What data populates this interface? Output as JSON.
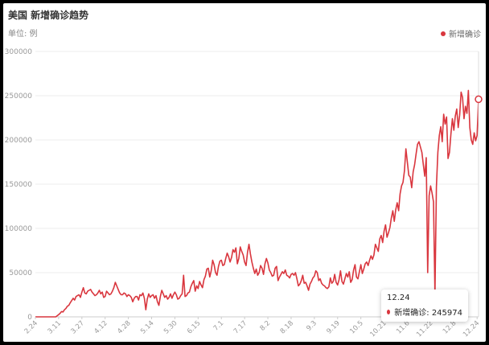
{
  "header": {
    "title": "美国 新增确诊趋势",
    "unit": "单位: 例"
  },
  "colors": {
    "line": "#d9363e",
    "grid": "#ececec",
    "axis_text": "#999999"
  },
  "chart_data": {
    "type": "line",
    "title": "美国 新增确诊趋势",
    "ylabel": "单位: 例",
    "ylim": [
      0,
      300000
    ],
    "yticks": [
      "0",
      "50000",
      "100000",
      "150000",
      "200000",
      "250000",
      "300000"
    ],
    "xticks": [
      "2.24",
      "3.11",
      "3.27",
      "4.12",
      "4.28",
      "5.14",
      "5.30",
      "6.15",
      "7.1",
      "7.17",
      "8.2",
      "8.18",
      "9.3",
      "9.19",
      "10.5",
      "10.21",
      "11.6",
      "11.22",
      "12.8",
      "12.24"
    ],
    "legend": "top-right",
    "grid": true,
    "series": [
      {
        "name": "新增确诊",
        "start_date": "2.24",
        "values": [
          0,
          0,
          0,
          0,
          0,
          0,
          0,
          0,
          0,
          0,
          0,
          0,
          0,
          0,
          0,
          1200,
          2500,
          4000,
          6000,
          5500,
          8000,
          9500,
          12000,
          13000,
          16000,
          18500,
          21000,
          19000,
          23000,
          24000,
          25000,
          22000,
          28000,
          33000,
          27000,
          26000,
          29000,
          30000,
          31000,
          28000,
          26000,
          24000,
          25000,
          27000,
          30000,
          26000,
          28000,
          22000,
          23000,
          29000,
          27000,
          25000,
          26000,
          29000,
          33000,
          39000,
          35000,
          31000,
          27000,
          25000,
          25000,
          27000,
          26000,
          23000,
          25000,
          24000,
          22000,
          17000,
          21000,
          23000,
          23000,
          19000,
          25000,
          24000,
          27000,
          21000,
          8000,
          20000,
          26000,
          22000,
          24000,
          25000,
          21000,
          24000,
          17000,
          13000,
          23000,
          30000,
          26000,
          22000,
          24000,
          20000,
          22000,
          26000,
          21000,
          25000,
          28000,
          25000,
          20000,
          21000,
          24000,
          26000,
          47000,
          23000,
          24000,
          27000,
          28000,
          34000,
          38000,
          41000,
          29000,
          35000,
          32000,
          40000,
          36000,
          33000,
          42000,
          46000,
          54000,
          55000,
          45000,
          52000,
          64000,
          59000,
          50000,
          47000,
          57000,
          63000,
          64000,
          58000,
          59000,
          66000,
          72000,
          68000,
          62000,
          67000,
          76000,
          73000,
          78000,
          60000,
          66000,
          79000,
          74000,
          70000,
          62000,
          58000,
          73000,
          82000,
          71000,
          62000,
          55000,
          49000,
          54000,
          47000,
          50000,
          58000,
          55000,
          48000,
          60000,
          66000,
          61000,
          53000,
          50000,
          46000,
          47000,
          55000,
          57000,
          41000,
          45000,
          48000,
          51000,
          49000,
          53000,
          47000,
          46000,
          44000,
          48000,
          49000,
          47000,
          50000,
          43000,
          35000,
          37000,
          41000,
          47000,
          38000,
          39000,
          35000,
          30000,
          37000,
          40000,
          44000,
          46000,
          52000,
          50000,
          41000,
          43000,
          38000,
          36000,
          35000,
          33000,
          32000,
          34000,
          44000,
          38000,
          40000,
          48000,
          39000,
          36000,
          42000,
          52000,
          40000,
          37000,
          43000,
          49000,
          45000,
          51000,
          39000,
          42000,
          53000,
          59000,
          45000,
          43000,
          51000,
          59000,
          49000,
          54000,
          60000,
          62000,
          58000,
          64000,
          69000,
          65000,
          70000,
          82000,
          78000,
          74000,
          88000,
          92000,
          84000,
          97000,
          104000,
          90000,
          95000,
          101000,
          112000,
          120000,
          108000,
          121000,
          129000,
          120000,
          139000,
          148000,
          152000,
          165000,
          190000,
          175000,
          160000,
          158000,
          146000,
          164000,
          172000,
          184000,
          195000,
          198000,
          192000,
          186000,
          172000,
          159000,
          180000,
          50000,
          137000,
          148000,
          140000,
          130000,
          25000,
          147000,
          186000,
          205000,
          215000,
          198000,
          229000,
          218000,
          226000,
          179000,
          186000,
          207000,
          224000,
          211000,
          227000,
          235000,
          214000,
          228000,
          254000,
          248000,
          224000,
          238000,
          230000,
          256000,
          214000,
          200000,
          195000,
          208000,
          199000,
          205000,
          245974
        ]
      }
    ]
  },
  "tooltip": {
    "date": "12.24",
    "label": "新增确诊: 245974"
  }
}
